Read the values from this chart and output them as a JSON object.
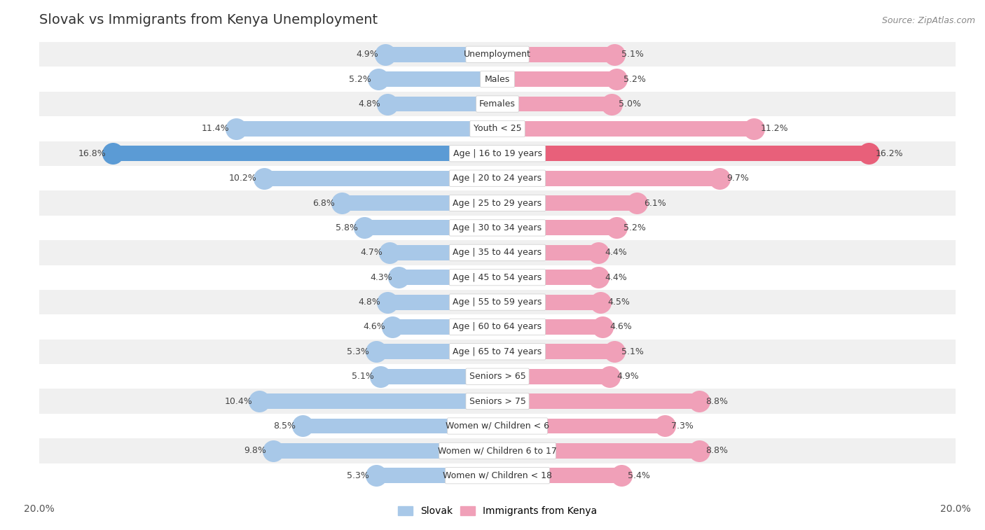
{
  "title": "Slovak vs Immigrants from Kenya Unemployment",
  "source": "Source: ZipAtlas.com",
  "categories": [
    "Unemployment",
    "Males",
    "Females",
    "Youth < 25",
    "Age | 16 to 19 years",
    "Age | 20 to 24 years",
    "Age | 25 to 29 years",
    "Age | 30 to 34 years",
    "Age | 35 to 44 years",
    "Age | 45 to 54 years",
    "Age | 55 to 59 years",
    "Age | 60 to 64 years",
    "Age | 65 to 74 years",
    "Seniors > 65",
    "Seniors > 75",
    "Women w/ Children < 6",
    "Women w/ Children 6 to 17",
    "Women w/ Children < 18"
  ],
  "slovak_values": [
    4.9,
    5.2,
    4.8,
    11.4,
    16.8,
    10.2,
    6.8,
    5.8,
    4.7,
    4.3,
    4.8,
    4.6,
    5.3,
    5.1,
    10.4,
    8.5,
    9.8,
    5.3
  ],
  "kenya_values": [
    5.1,
    5.2,
    5.0,
    11.2,
    16.2,
    9.7,
    6.1,
    5.2,
    4.4,
    4.4,
    4.5,
    4.6,
    5.1,
    4.9,
    8.8,
    7.3,
    8.8,
    5.4
  ],
  "slovak_color": "#a8c8e8",
  "kenya_color": "#f0a0b8",
  "highlight_slovak_color": "#5b9bd5",
  "highlight_kenya_color": "#e8607a",
  "max_val": 20.0,
  "bar_height": 0.62,
  "bg_color": "#ffffff",
  "row_color_even": "#f0f0f0",
  "row_color_odd": "#ffffff",
  "label_fontsize": 9,
  "value_fontsize": 9,
  "title_fontsize": 14
}
